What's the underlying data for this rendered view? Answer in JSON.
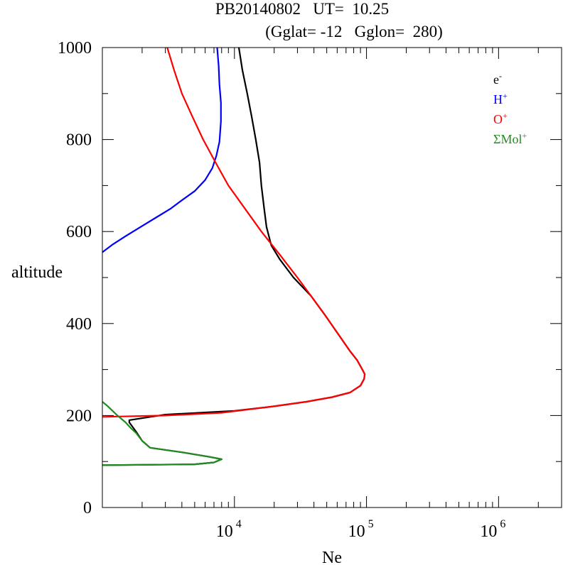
{
  "title": {
    "line1": "PB20140802   UT=  10.25",
    "line2": "(Gglat= -12   Gglon=  280)"
  },
  "chart_data": {
    "type": "line",
    "xlabel": "Ne",
    "ylabel": "altitude",
    "xscale": "log",
    "xlim": [
      1000,
      3000000
    ],
    "ylim": [
      0,
      1000
    ],
    "x_tick_labels": [
      {
        "value": 10000,
        "base": "10",
        "exp": "4"
      },
      {
        "value": 100000,
        "base": "10",
        "exp": "5"
      },
      {
        "value": 1000000,
        "base": "10",
        "exp": "6"
      }
    ],
    "y_ticks": [
      0,
      200,
      400,
      600,
      800,
      1000
    ],
    "legend_position": "top-right",
    "series": [
      {
        "name": "e-",
        "legend_base": "e",
        "legend_sup": "-",
        "color": "#000000",
        "points": [
          [
            1000,
            92
          ],
          [
            5000,
            94
          ],
          [
            7000,
            98
          ],
          [
            8000,
            105
          ],
          [
            6500,
            110
          ],
          [
            4000,
            120
          ],
          [
            2300,
            130
          ],
          [
            2000,
            145
          ],
          [
            1800,
            165
          ],
          [
            1600,
            185
          ],
          [
            1600,
            190
          ],
          [
            3000,
            202
          ],
          [
            10000,
            210
          ],
          [
            20000,
            220
          ],
          [
            35000,
            230
          ],
          [
            55000,
            240
          ],
          [
            75000,
            250
          ],
          [
            90000,
            265
          ],
          [
            96000,
            280
          ],
          [
            97000,
            290
          ],
          [
            93000,
            300
          ],
          [
            85000,
            320
          ],
          [
            75000,
            340
          ],
          [
            60000,
            380
          ],
          [
            48000,
            420
          ],
          [
            38000,
            460
          ],
          [
            28000,
            500
          ],
          [
            22000,
            540
          ],
          [
            19000,
            570
          ],
          [
            17500,
            610
          ],
          [
            16800,
            650
          ],
          [
            16000,
            700
          ],
          [
            15500,
            750
          ],
          [
            14500,
            800
          ],
          [
            13500,
            850
          ],
          [
            12500,
            900
          ],
          [
            11500,
            950
          ],
          [
            10800,
            1000
          ]
        ]
      },
      {
        "name": "H+",
        "legend_base": "H",
        "legend_sup": "+",
        "color": "#0000ff",
        "points": [
          [
            1000,
            555
          ],
          [
            1200,
            572
          ],
          [
            1500,
            590
          ],
          [
            2000,
            612
          ],
          [
            2600,
            632
          ],
          [
            3300,
            650
          ],
          [
            4000,
            668
          ],
          [
            5000,
            688
          ],
          [
            6000,
            712
          ],
          [
            6800,
            738
          ],
          [
            7300,
            765
          ],
          [
            7700,
            795
          ],
          [
            7900,
            840
          ],
          [
            7900,
            880
          ],
          [
            7700,
            920
          ],
          [
            7600,
            960
          ],
          [
            7400,
            1000
          ]
        ]
      },
      {
        "name": "O+",
        "legend_base": "O",
        "legend_sup": "+",
        "color": "#ff0000",
        "points": [
          [
            1000,
            197
          ],
          [
            3000,
            200
          ],
          [
            8000,
            206
          ],
          [
            20000,
            220
          ],
          [
            35000,
            230
          ],
          [
            55000,
            240
          ],
          [
            75000,
            250
          ],
          [
            90000,
            265
          ],
          [
            96000,
            280
          ],
          [
            97000,
            290
          ],
          [
            93000,
            300
          ],
          [
            85000,
            320
          ],
          [
            75000,
            340
          ],
          [
            60000,
            380
          ],
          [
            48000,
            420
          ],
          [
            38000,
            460
          ],
          [
            30000,
            500
          ],
          [
            22000,
            550
          ],
          [
            16000,
            600
          ],
          [
            12000,
            650
          ],
          [
            9000,
            700
          ],
          [
            7200,
            750
          ],
          [
            5800,
            800
          ],
          [
            4800,
            850
          ],
          [
            4000,
            900
          ],
          [
            3500,
            950
          ],
          [
            3100,
            1000
          ]
        ]
      },
      {
        "name": "ΣMol+",
        "legend_base": "ΣMol",
        "legend_sup": "+",
        "color": "#228b22",
        "points": [
          [
            1000,
            92
          ],
          [
            5000,
            94
          ],
          [
            7000,
            98
          ],
          [
            8000,
            105
          ],
          [
            6500,
            110
          ],
          [
            4000,
            120
          ],
          [
            2300,
            130
          ],
          [
            2000,
            145
          ],
          [
            1800,
            162
          ],
          [
            1650,
            172
          ],
          [
            1500,
            185
          ],
          [
            1300,
            200
          ],
          [
            1100,
            220
          ],
          [
            1000,
            230
          ]
        ]
      }
    ]
  }
}
